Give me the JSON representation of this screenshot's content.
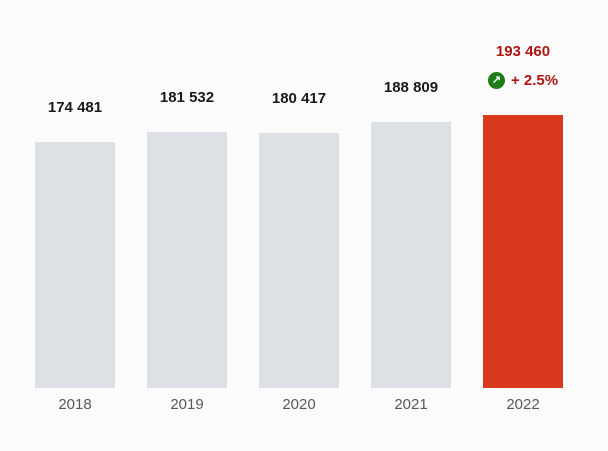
{
  "chart_data": {
    "type": "bar",
    "title": "",
    "xlabel": "",
    "ylabel": "",
    "categories": [
      "2018",
      "2019",
      "2020",
      "2021",
      "2022"
    ],
    "values": [
      174481,
      181532,
      180417,
      188809,
      193460
    ],
    "value_labels": [
      "174 481",
      "181 532",
      "180 417",
      "188 809",
      "193 460"
    ],
    "highlight_index": 4,
    "change_label": "+ 2.5%",
    "ylim": [
      0,
      193460
    ],
    "grid": false,
    "legend": false,
    "colors": {
      "background": "#fbfbfb",
      "bar_default": "#dde0e4",
      "bar_highlight": "#d93a1e",
      "value_label": "#1a1a1a",
      "value_label_highlight": "#b01512",
      "change_label": "#b01512",
      "badge_background": "#1e7d17",
      "badge_arrow": "#ffffff",
      "axis_label": "#595959"
    }
  }
}
